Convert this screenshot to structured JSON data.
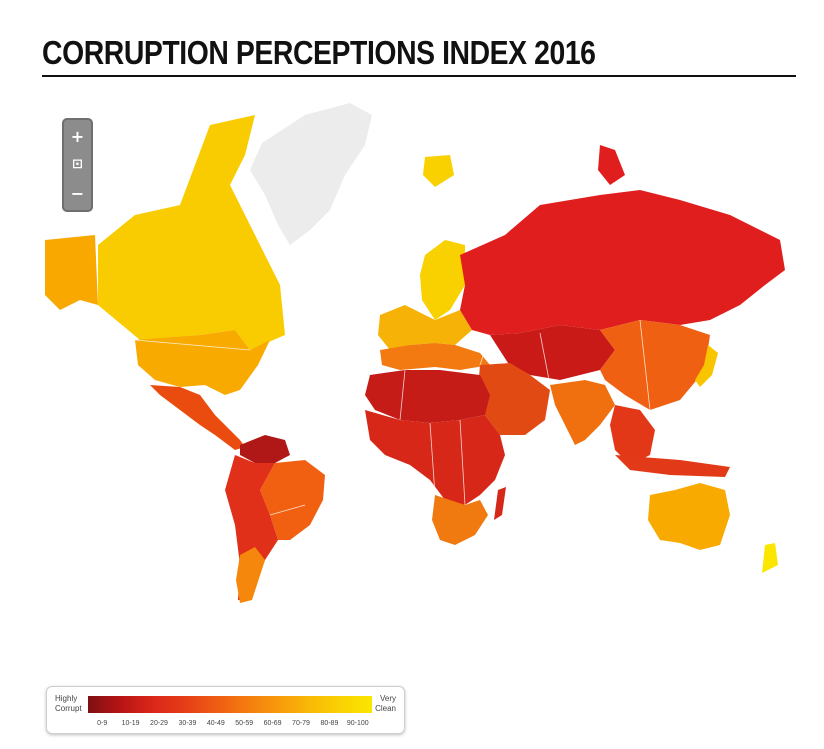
{
  "title": "CORRUPTION PERCEPTIONS INDEX 2016",
  "zoom_controls": {
    "zoom_in": "+",
    "reset": "⊡",
    "zoom_out": "−"
  },
  "legend": {
    "low_label": "Highly\nCorrupt",
    "high_label": "Very\nClean",
    "ranges": [
      "0-9",
      "10-19",
      "20-29",
      "30-39",
      "40-49",
      "50-59",
      "60-69",
      "70-79",
      "80-89",
      "90-100"
    ],
    "colors": [
      "#7f0f12",
      "#b51414",
      "#d9261a",
      "#e43b18",
      "#ef5a14",
      "#f47a10",
      "#f7990b",
      "#f9b807",
      "#f9d203",
      "#fae600"
    ]
  },
  "colors": {
    "no_data": "#ececec",
    "ocean": "#ffffff"
  }
}
